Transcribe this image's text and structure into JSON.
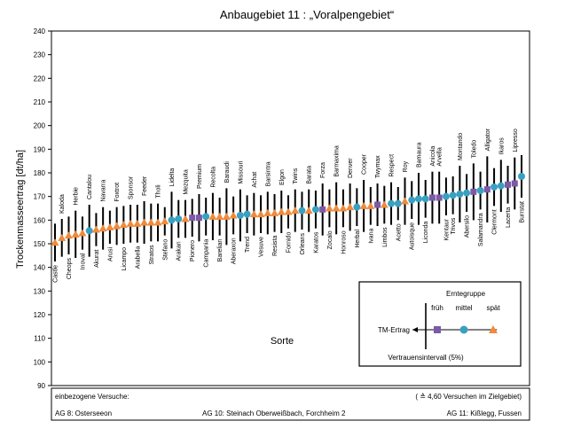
{
  "chart_data": {
    "type": "scatter",
    "title": "Anbaugebiet 11 : „Voralpengebiet“",
    "ylabel": "Trockenmasseertrag [dt/ha]",
    "xlabel": "Sorte",
    "ylim": [
      90,
      240
    ],
    "yticks": [
      90,
      100,
      110,
      120,
      130,
      140,
      150,
      160,
      170,
      180,
      190,
      200,
      210,
      220,
      230,
      240
    ],
    "series": [
      {
        "name": "früh",
        "marker": "square",
        "color": "#7b5aa6"
      },
      {
        "name": "mittel",
        "marker": "circle",
        "color": "#3aa0c0"
      },
      {
        "name": "spät",
        "marker": "triangle",
        "color": "#f08a3c"
      }
    ],
    "points": [
      {
        "label": "Castle",
        "value": 150.5,
        "err": 8,
        "group": "spät"
      },
      {
        "label": "Kaloda",
        "value": 152.5,
        "err": 8,
        "group": "spät"
      },
      {
        "label": "Cheops",
        "value": 153.5,
        "err": 8,
        "group": "spät"
      },
      {
        "label": "Herbie",
        "value": 154,
        "err": 10,
        "group": "spät"
      },
      {
        "label": "Inoval",
        "value": 154.5,
        "err": 7,
        "group": "spät"
      },
      {
        "label": "Cantalou",
        "value": 155.5,
        "err": 11,
        "group": "mittel"
      },
      {
        "label": "Akurat",
        "value": 156,
        "err": 7,
        "group": "spät"
      },
      {
        "label": "Navarra",
        "value": 156.5,
        "err": 9,
        "group": "spät"
      },
      {
        "label": "Arusi",
        "value": 157,
        "err": 7,
        "group": "spät"
      },
      {
        "label": "Foxtrot",
        "value": 157.5,
        "err": 8,
        "group": "spät"
      },
      {
        "label": "Licampo",
        "value": 158,
        "err": 8,
        "group": "spät"
      },
      {
        "label": "Sponsor",
        "value": 158.5,
        "err": 8,
        "group": "spät"
      },
      {
        "label": "Arabella",
        "value": 158.5,
        "err": 8,
        "group": "spät"
      },
      {
        "label": "Feeder",
        "value": 159,
        "err": 9,
        "group": "spät"
      },
      {
        "label": "Stratos",
        "value": 159,
        "err": 8,
        "group": "spät"
      },
      {
        "label": "Tholi",
        "value": 159,
        "err": 8,
        "group": "spät"
      },
      {
        "label": "Stefano",
        "value": 159.5,
        "err": 6,
        "group": "spät"
      },
      {
        "label": "Lidelta",
        "value": 160,
        "err": 12,
        "group": "mittel"
      },
      {
        "label": "Arakan",
        "value": 160.5,
        "err": 8,
        "group": "mittel"
      },
      {
        "label": "Mezquita",
        "value": 160.5,
        "err": 8,
        "group": "spät"
      },
      {
        "label": "Pionero",
        "value": 161,
        "err": 8,
        "group": "früh"
      },
      {
        "label": "Premium",
        "value": 161,
        "err": 10,
        "group": "früh"
      },
      {
        "label": "Campania",
        "value": 161.5,
        "err": 8,
        "group": "mittel"
      },
      {
        "label": "Recolta",
        "value": 161.5,
        "err": 10,
        "group": "spät"
      },
      {
        "label": "Barelian",
        "value": 161.5,
        "err": 8,
        "group": "spät"
      },
      {
        "label": "Baraudi",
        "value": 161.5,
        "err": 12,
        "group": "spät"
      },
      {
        "label": "Aberaxon",
        "value": 162,
        "err": 8,
        "group": "spät"
      },
      {
        "label": "Missouri",
        "value": 162,
        "err": 11,
        "group": "mittel"
      },
      {
        "label": "Trend",
        "value": 162.5,
        "err": 8,
        "group": "mittel"
      },
      {
        "label": "Achat",
        "value": 162.5,
        "err": 9,
        "group": "spät"
      },
      {
        "label": "Vesuve",
        "value": 162.5,
        "err": 8,
        "group": "spät"
      },
      {
        "label": "Barsintra",
        "value": 163,
        "err": 9,
        "group": "spät"
      },
      {
        "label": "Resista",
        "value": 163,
        "err": 8,
        "group": "spät"
      },
      {
        "label": "Elgon",
        "value": 163.5,
        "err": 9,
        "group": "spät"
      },
      {
        "label": "Fornido",
        "value": 163.5,
        "err": 7,
        "group": "spät"
      },
      {
        "label": "Twins",
        "value": 164,
        "err": 9,
        "group": "spät"
      },
      {
        "label": "Orleans",
        "value": 164,
        "err": 8,
        "group": "mittel"
      },
      {
        "label": "Barata",
        "value": 164,
        "err": 9,
        "group": "spät"
      },
      {
        "label": "Karatos",
        "value": 164.5,
        "err": 8,
        "group": "mittel"
      },
      {
        "label": "Forza",
        "value": 164.5,
        "err": 11,
        "group": "früh"
      },
      {
        "label": "Zocalo",
        "value": 165,
        "err": 8,
        "group": "spät"
      },
      {
        "label": "Barmaxima",
        "value": 165,
        "err": 11,
        "group": "spät"
      },
      {
        "label": "Honroso",
        "value": 165,
        "err": 8,
        "group": "spät"
      },
      {
        "label": "Denver",
        "value": 165.5,
        "err": 10,
        "group": "spät"
      },
      {
        "label": "Herbal",
        "value": 165.5,
        "err": 8,
        "group": "mittel"
      },
      {
        "label": "Cooper",
        "value": 166,
        "err": 11,
        "group": "spät"
      },
      {
        "label": "Ivana",
        "value": 166,
        "err": 8,
        "group": "spät"
      },
      {
        "label": "Twymax",
        "value": 166.5,
        "err": 9,
        "group": "früh"
      },
      {
        "label": "Limbos",
        "value": 166.5,
        "err": 8,
        "group": "spät"
      },
      {
        "label": "Respect",
        "value": 167,
        "err": 9,
        "group": "mittel"
      },
      {
        "label": "Acetto",
        "value": 167,
        "err": 7,
        "group": "mittel"
      },
      {
        "label": "Roy",
        "value": 168,
        "err": 10,
        "group": "spät"
      },
      {
        "label": "Autoisque",
        "value": 168.5,
        "err": 8,
        "group": "mittel"
      },
      {
        "label": "Bamaura",
        "value": 169,
        "err": 11,
        "group": "mittel"
      },
      {
        "label": "Liconda",
        "value": 169,
        "err": 8,
        "group": "mittel"
      },
      {
        "label": "Anicola",
        "value": 169.5,
        "err": 11,
        "group": "früh"
      },
      {
        "label": "Arvella",
        "value": 169.5,
        "err": 11,
        "group": "früh"
      },
      {
        "label": "Kentaur",
        "value": 170,
        "err": 8,
        "group": "mittel"
      },
      {
        "label": "Trivos",
        "value": 170.5,
        "err": 8,
        "group": "mittel"
      },
      {
        "label": "Montando",
        "value": 171,
        "err": 12,
        "group": "mittel"
      },
      {
        "label": "Abersilo",
        "value": 171.5,
        "err": 8,
        "group": "mittel"
      },
      {
        "label": "Toledo",
        "value": 172,
        "err": 12,
        "group": "früh"
      },
      {
        "label": "Salamandra",
        "value": 172.5,
        "err": 8,
        "group": "mittel"
      },
      {
        "label": "Alligator",
        "value": 173,
        "err": 14,
        "group": "früh"
      },
      {
        "label": "Clermont",
        "value": 174,
        "err": 8,
        "group": "mittel"
      },
      {
        "label": "Ikaros",
        "value": 174.5,
        "err": 11,
        "group": "mittel"
      },
      {
        "label": "Lacerta",
        "value": 175,
        "err": 8,
        "group": "früh"
      },
      {
        "label": "Lipresso",
        "value": 175.5,
        "err": 11,
        "group": "früh"
      },
      {
        "label": "Burrstat",
        "value": 178.5,
        "err": 9,
        "group": "mittel"
      }
    ],
    "label_rows": {
      "Castle": "low",
      "Kaloda": "high",
      "Cheops": "low",
      "Herbie": "high",
      "Inoval": "low",
      "Cantalou": "high",
      "Akurat": "low",
      "Navarra": "high",
      "Arusi": "low",
      "Foxtrot": "high",
      "Licampo": "low",
      "Sponsor": "high",
      "Arabella": "low",
      "Feeder": "high",
      "Stratos": "low",
      "Tholi": "high",
      "Stefano": "low",
      "Lidelta": "high",
      "Arakan": "low",
      "Mezquita": "high",
      "Pionero": "low",
      "Premium": "high",
      "Campania": "low",
      "Recolta": "high",
      "Barelian": "low",
      "Baraudi": "high",
      "Aberaxon": "low",
      "Missouri": "high",
      "Trend": "low",
      "Achat": "high",
      "Vesuve": "low",
      "Barsintra": "high",
      "Resista": "low",
      "Elgon": "high",
      "Fornido": "low",
      "Twins": "high",
      "Orleans": "low",
      "Barata": "high",
      "Karatos": "low",
      "Forza": "high",
      "Zocalo": "low",
      "Barmaxima": "high",
      "Honroso": "low",
      "Denver": "high",
      "Herbal": "low",
      "Cooper": "high",
      "Ivana": "low",
      "Twymax": "high",
      "Limbos": "low",
      "Respect": "high",
      "Acetto": "low",
      "Roy": "high",
      "Autoisque": "low",
      "Bamaura": "high",
      "Liconda": "low",
      "Anicola": "high",
      "Arvella": "high",
      "Kentaur": "low",
      "Trivos": "low",
      "Montando": "high",
      "Abersilo": "low",
      "Toledo": "high",
      "Salamandra": "low",
      "Alligator": "high",
      "Clermont": "low",
      "Ikaros": "high",
      "Lacerta": "low",
      "Lipresso": "high",
      "Burrstat": "low"
    }
  },
  "legend": {
    "title": "Erntegruppe",
    "labels": [
      "früh",
      "mittel",
      "spät"
    ],
    "tm_label": "TM-Ertrag",
    "ci_label": "Vertrauensintervall (5%)",
    "placement": "bottom-right"
  },
  "footer": {
    "heading": "einbezogene Versuche:",
    "note": "( ≙ 4,60 Versuchen im Zielgebiet)",
    "ag8": "AG 8:  Osterseeon",
    "ag10": "AG 10:  Steinach Oberweißbach, Forchheim 2",
    "ag11": "AG 11:  Kißlegg, Fussen"
  }
}
